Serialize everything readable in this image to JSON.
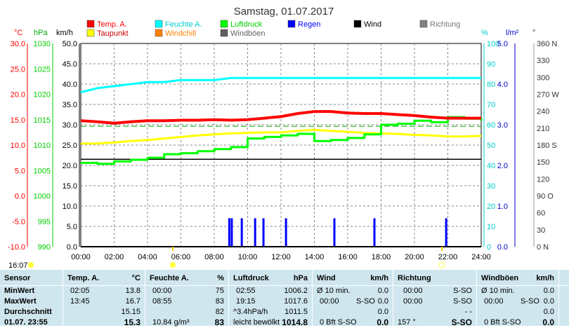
{
  "chart_data": {
    "type": "line",
    "title": "Samstag, 01.07.2017",
    "x_ticks": [
      "00:00",
      "02:00",
      "04:00",
      "06:00",
      "08:00",
      "10:00",
      "12:00",
      "14:00",
      "16:00",
      "18:00",
      "20:00",
      "22:00",
      "24:00"
    ],
    "axes": {
      "temp": {
        "label": "°C",
        "ticks": [
          "30.0",
          "25.0",
          "20.0",
          "15.0",
          "10.0",
          "5.0",
          "0.0",
          "-5.0",
          "-10.0"
        ],
        "color": "#ff0000"
      },
      "hpa": {
        "label": "hPa",
        "ticks": [
          "1030",
          "1025",
          "1020",
          "1015",
          "1010",
          "1005",
          "1000",
          "995",
          "990"
        ],
        "color": "#00cc00"
      },
      "kmh": {
        "label": "km/h",
        "ticks": [
          "50.0",
          "45.0",
          "40.0",
          "35.0",
          "30.0",
          "25.0",
          "20.0",
          "15.0",
          "10.0",
          "5.0",
          "0.0"
        ],
        "color": "#000000",
        "ylim": [
          0,
          50
        ]
      },
      "pct": {
        "label": "%",
        "ticks": [
          "100",
          "90",
          "80",
          "70",
          "60",
          "50",
          "40",
          "30",
          "20",
          "10",
          "0"
        ],
        "color": "#00cccc"
      },
      "rain": {
        "label": "l/m²",
        "ticks": [
          "5.0",
          "4.0",
          "3.0",
          "2.0",
          "1.0",
          "0.0"
        ],
        "color": "#0000cc"
      },
      "dir": {
        "label": "°",
        "ticks": [
          "360 N",
          "330",
          "300",
          "270 W",
          "240",
          "210",
          "180 S",
          "150",
          "120",
          "90 O",
          "60",
          "30",
          "0 N"
        ],
        "color": "#333333"
      }
    },
    "legend": [
      {
        "name": "Temp. A.",
        "color": "#ff0000"
      },
      {
        "name": "Feuchte A.",
        "color": "#00ffff"
      },
      {
        "name": "Luftdruck",
        "color": "#00ff00"
      },
      {
        "name": "Regen",
        "color": "#0000ff"
      },
      {
        "name": "Wind",
        "color": "#000000"
      },
      {
        "name": "Richtung",
        "color": "#808080"
      },
      {
        "name": "Taupunkt",
        "color": "#ffff00"
      },
      {
        "name": "Windchill",
        "color": "#ff8000"
      },
      {
        "name": "Windböen",
        "color": "#606060"
      }
    ],
    "series": [
      {
        "name": "Temp. A.",
        "axis": "temp",
        "color": "#ff0000",
        "x": [
          0,
          1,
          2,
          3,
          4,
          5,
          6,
          7,
          8,
          9,
          10,
          11,
          12,
          13,
          14,
          15,
          16,
          17,
          18,
          19,
          20,
          21,
          22,
          23,
          24
        ],
        "y": [
          14.8,
          14.6,
          14.3,
          14.6,
          14.8,
          14.8,
          14.9,
          14.9,
          15.0,
          14.9,
          15.0,
          15.3,
          15.6,
          16.2,
          16.6,
          16.6,
          16.3,
          16.2,
          16.2,
          16.0,
          15.8,
          15.5,
          15.3,
          15.3,
          15.3
        ]
      },
      {
        "name": "Feuchte A.",
        "axis": "pct",
        "color": "#00ffff",
        "x": [
          0,
          1,
          2,
          3,
          4,
          5,
          6,
          7,
          8,
          9,
          10,
          11,
          12,
          13,
          14,
          15,
          16,
          17,
          18,
          19,
          20,
          21,
          22,
          23,
          24
        ],
        "y": [
          76,
          78,
          79,
          80,
          81,
          81,
          82,
          82,
          82,
          83,
          83,
          83,
          83,
          83,
          83,
          83,
          83,
          83,
          83,
          83,
          83,
          83,
          83,
          83,
          83
        ]
      },
      {
        "name": "Luftdruck",
        "axis": "hpa",
        "color": "#00ff00",
        "x": [
          0,
          1,
          2,
          3,
          4,
          5,
          6,
          7,
          8,
          9,
          10,
          11,
          12,
          13,
          14,
          15,
          16,
          17,
          18,
          19,
          20,
          21,
          22,
          23,
          24
        ],
        "y": [
          1006.5,
          1006.3,
          1006.8,
          1007.1,
          1007.5,
          1008.2,
          1008.4,
          1008.8,
          1009.2,
          1009.6,
          1011.3,
          1011.6,
          1011.9,
          1012.2,
          1010.8,
          1011.0,
          1011.4,
          1012.1,
          1014.0,
          1014.2,
          1014.8,
          1014.5,
          1015.5,
          1015.2,
          1014.8
        ]
      },
      {
        "name": "Taupunkt",
        "axis": "temp",
        "color": "#ffff00",
        "x": [
          0,
          1,
          2,
          3,
          4,
          5,
          6,
          7,
          8,
          9,
          10,
          11,
          12,
          13,
          14,
          15,
          16,
          17,
          18,
          19,
          20,
          21,
          22,
          23,
          24
        ],
        "y": [
          10.3,
          10.3,
          10.5,
          10.8,
          11.0,
          11.3,
          11.6,
          11.9,
          12.1,
          12.3,
          12.4,
          12.5,
          12.5,
          12.8,
          13.0,
          12.8,
          12.6,
          12.4,
          12.3,
          12.2,
          12.0,
          11.9,
          11.7,
          11.7,
          11.8
        ]
      },
      {
        "name": "Regen",
        "axis": "rain",
        "color": "#0000ff",
        "type": "bar",
        "x": [
          8.9,
          9.05,
          9.65,
          10.45,
          10.95,
          12.3,
          15.2,
          17.6,
          21.9
        ],
        "y": [
          0.7,
          0.7,
          0.7,
          0.7,
          0.7,
          0.7,
          0.7,
          0.7,
          0.7
        ]
      },
      {
        "name": "Wind",
        "axis": "kmh",
        "color": "#000000",
        "x": [
          0,
          24
        ],
        "y": [
          0,
          0
        ]
      }
    ],
    "dashed_line": {
      "axis": "temp",
      "value": 13.7,
      "color": "#00aa00"
    },
    "solid_line": {
      "axis": "kmh",
      "value": 21.5,
      "color": "#000000"
    },
    "grid": true
  },
  "status": {
    "time": "16:07"
  },
  "table": {
    "headers": [
      {
        "name": "Sensor",
        "unit": ""
      },
      {
        "name": "Temp. A.",
        "unit": "°C"
      },
      {
        "name": "Feuchte A.",
        "unit": "%"
      },
      {
        "name": "Luftdruck",
        "unit": "hPa"
      },
      {
        "name": "Wind",
        "unit": "km/h"
      },
      {
        "name": "Richtung",
        "unit": ""
      },
      {
        "name": "Windböen",
        "unit": "km/h"
      }
    ],
    "rows": [
      {
        "label": "MinWert",
        "temp": [
          "02:05",
          "13.8"
        ],
        "hum": [
          "00:00",
          "75"
        ],
        "press": [
          "02:55",
          "1006.2"
        ],
        "wind": [
          "Ø 10 min.",
          "0.0"
        ],
        "dir": [
          "00:00",
          "S-SO"
        ],
        "gust": [
          "Ø 10 min.",
          "0.0"
        ]
      },
      {
        "label": "MaxWert",
        "temp": [
          "13:45",
          "16.7"
        ],
        "hum": [
          "08:55",
          "83"
        ],
        "press": [
          "19:15",
          "1017.6"
        ],
        "wind": [
          "00:00",
          "S-SO",
          "0.0"
        ],
        "dir": [
          "00:00",
          "S-SO"
        ],
        "gust": [
          "00:00",
          "S-SO",
          "0.0"
        ]
      },
      {
        "label": "Durchschnitt",
        "temp": [
          "",
          "15.15"
        ],
        "hum": [
          "",
          "82"
        ],
        "press": [
          "^3.4hPa/h",
          "1011.5"
        ],
        "wind": [
          "",
          "0.0"
        ],
        "dir": [
          "",
          "- -"
        ],
        "gust": [
          "",
          "0.0"
        ]
      },
      {
        "label": "01.07. 23:55",
        "temp": [
          "",
          "15.3"
        ],
        "hum": [
          "10.84 g/m³",
          "83"
        ],
        "press": [
          "leicht bewölkt",
          "1014.8"
        ],
        "wind": [
          "0 Bft S-SO",
          "0.0"
        ],
        "dir": [
          "157 °",
          "S-SO"
        ],
        "gust": [
          "0 Bft S-SO",
          "0.0"
        ]
      }
    ]
  }
}
